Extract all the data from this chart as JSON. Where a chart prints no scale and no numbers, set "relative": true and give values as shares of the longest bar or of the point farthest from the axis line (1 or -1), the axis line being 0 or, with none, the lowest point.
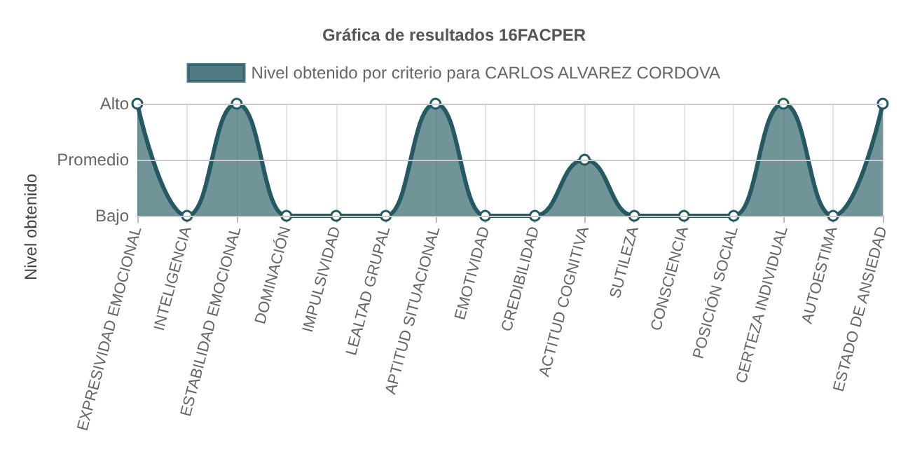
{
  "chart_data": {
    "type": "area",
    "title": "Gráfica de resultados 16FACPER",
    "ylabel": "Nivel obtenido",
    "categories": [
      "EXPRESIVIDAD EMOCIONAL",
      "INTELIGENCIA",
      "ESTABILIDAD EMOCIONAL",
      "DOMINACIÓN",
      "IMPULSIVIDAD",
      "LEALTAD GRUPAL",
      "APTITUD SITUACIONAL",
      "EMOTIVIDAD",
      "CREDIBILIDAD",
      "ACTITUD COGNITIVA",
      "SUTILEZA",
      "CONSCIENCIA",
      "POSICIÓN SOCIAL",
      "CERTEZA INDIVIDUAL",
      "AUTOESTIMA",
      "ESTADO DE ANSIEDAD"
    ],
    "series": [
      {
        "name": "Nivel obtenido por criterio para CARLOS ALVAREZ CORDOVA",
        "color": "#255a63",
        "values": [
          1,
          0,
          1,
          0,
          0,
          0,
          1,
          0,
          0,
          0.5,
          0,
          0,
          0,
          1,
          0,
          1
        ]
      }
    ],
    "relative": true,
    "ref_lines": [
      {
        "axis": "y",
        "value": 1,
        "label": "Alto",
        "color": "#cccccc"
      },
      {
        "axis": "y",
        "value": 0.5,
        "label": "Promedio",
        "color": "#cccccc"
      },
      {
        "axis": "y",
        "value": 0,
        "label": "Bajo",
        "color": "#cccccc"
      }
    ],
    "grid": "x",
    "legend": "top",
    "marker": "circle"
  }
}
